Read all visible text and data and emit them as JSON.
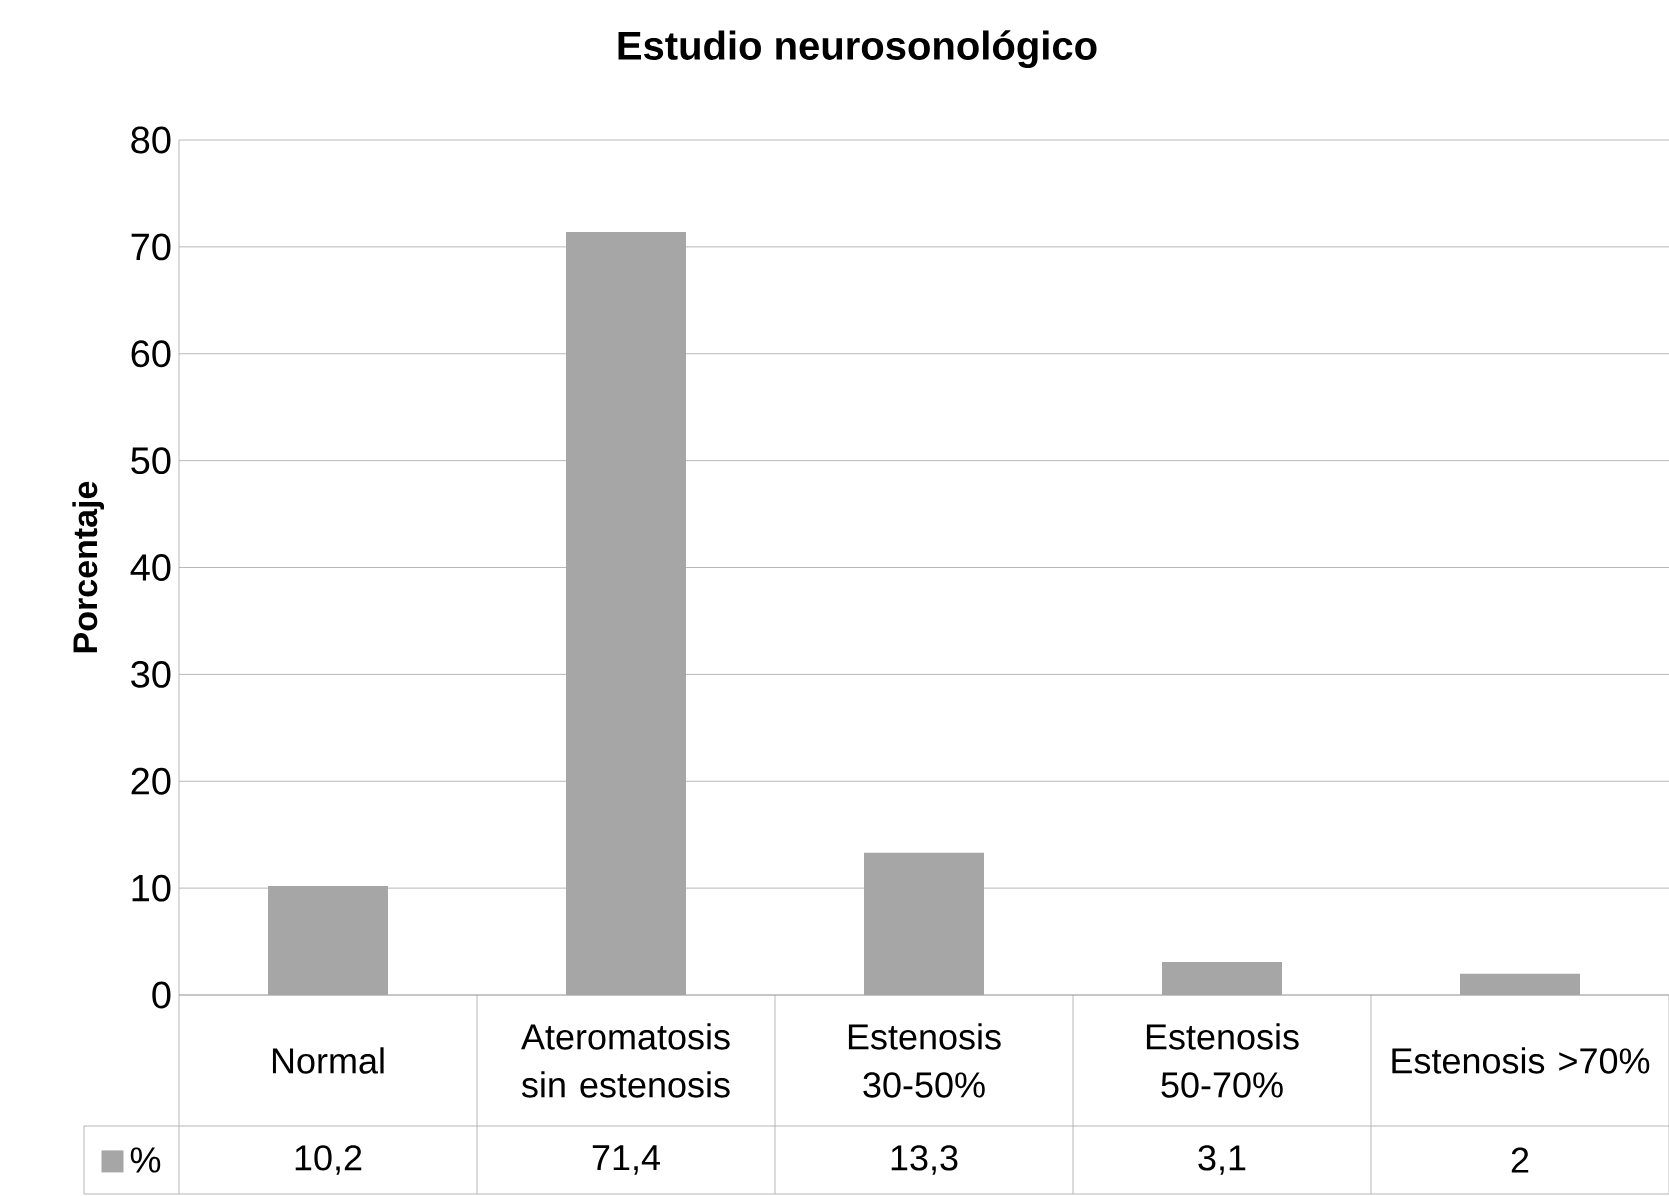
{
  "chart_data": {
    "type": "bar",
    "title": "Estudio neurosonológico",
    "ylabel": "Porcentaje",
    "categories": [
      "Normal",
      "Ateromatosis sin estenosis",
      "Estenosis 30-50%",
      "Estenosis 50-70%",
      "Estenosis >70%"
    ],
    "series": [
      {
        "name": "%",
        "color": "#a6a6a6",
        "values": [
          10.2,
          71.4,
          13.3,
          3.1,
          2
        ],
        "value_labels": [
          "10,2",
          "71,4",
          "13,3",
          "3,1",
          "2"
        ]
      }
    ],
    "ylim": [
      0,
      80
    ],
    "yticks": [
      0,
      10,
      20,
      30,
      40,
      50,
      60,
      70,
      80
    ],
    "grid": "y",
    "legend": "bottom"
  }
}
